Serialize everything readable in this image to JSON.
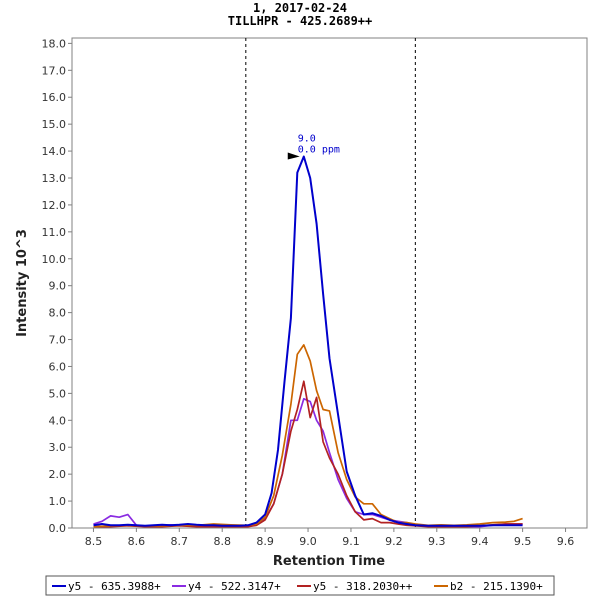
{
  "chart_data": {
    "type": "line",
    "title": "1, 2017-02-24",
    "subtitle": "TILLHPR - 425.2689++",
    "xlabel": "Retention Time",
    "ylabel": "Intensity 10^3",
    "xlim": [
      8.45,
      9.65
    ],
    "ylim": [
      0,
      18.2
    ],
    "x_ticks": [
      "8.5",
      "8.6",
      "8.7",
      "8.8",
      "8.9",
      "9.0",
      "9.1",
      "9.2",
      "9.3",
      "9.4",
      "9.5",
      "9.6"
    ],
    "y_ticks": [
      "0.0",
      "1.0",
      "2.0",
      "3.0",
      "4.0",
      "5.0",
      "6.0",
      "7.0",
      "8.0",
      "9.0",
      "10.0",
      "11.0",
      "12.0",
      "13.0",
      "14.0",
      "15.0",
      "16.0",
      "17.0",
      "18.0"
    ],
    "x_tick_values": [
      8.5,
      8.6,
      8.7,
      8.8,
      8.9,
      9.0,
      9.1,
      9.2,
      9.3,
      9.4,
      9.5,
      9.6
    ],
    "y_tick_values": [
      0,
      1,
      2,
      3,
      4,
      5,
      6,
      7,
      8,
      9,
      10,
      11,
      12,
      13,
      14,
      15,
      16,
      17,
      18
    ],
    "integration_bounds": [
      8.855,
      9.25
    ],
    "annotation": {
      "x": 8.99,
      "y": 13.8,
      "lines": [
        "9.0",
        "0.0 ppm"
      ]
    },
    "grid": false,
    "legend_position": "bottom",
    "series": [
      {
        "name": "y5 - 635.3988+",
        "color": "#0000cc",
        "x": [
          8.5,
          8.52,
          8.54,
          8.56,
          8.58,
          8.6,
          8.62,
          8.64,
          8.66,
          8.68,
          8.7,
          8.72,
          8.74,
          8.76,
          8.78,
          8.8,
          8.82,
          8.84,
          8.86,
          8.88,
          8.9,
          8.915,
          8.93,
          8.945,
          8.96,
          8.975,
          8.99,
          9.005,
          9.02,
          9.035,
          9.05,
          9.07,
          9.09,
          9.11,
          9.13,
          9.15,
          9.17,
          9.19,
          9.21,
          9.23,
          9.25,
          9.28,
          9.31,
          9.34,
          9.37,
          9.4,
          9.43,
          9.46,
          9.5
        ],
        "y": [
          0.1,
          0.15,
          0.1,
          0.1,
          0.12,
          0.1,
          0.08,
          0.1,
          0.12,
          0.1,
          0.12,
          0.15,
          0.12,
          0.1,
          0.1,
          0.08,
          0.08,
          0.08,
          0.1,
          0.2,
          0.5,
          1.3,
          2.9,
          5.4,
          7.8,
          13.2,
          13.8,
          13.0,
          11.3,
          8.7,
          6.3,
          4.2,
          2.1,
          1.2,
          0.5,
          0.55,
          0.45,
          0.3,
          0.2,
          0.15,
          0.1,
          0.08,
          0.08,
          0.08,
          0.08,
          0.08,
          0.1,
          0.1,
          0.1
        ]
      },
      {
        "name": "y4 - 522.3147+",
        "color": "#8a2be2",
        "x": [
          8.5,
          8.52,
          8.54,
          8.56,
          8.58,
          8.6,
          8.62,
          8.64,
          8.66,
          8.68,
          8.7,
          8.72,
          8.74,
          8.76,
          8.78,
          8.8,
          8.82,
          8.84,
          8.86,
          8.88,
          8.9,
          8.92,
          8.94,
          8.96,
          8.975,
          8.99,
          9.005,
          9.02,
          9.035,
          9.05,
          9.07,
          9.09,
          9.11,
          9.13,
          9.15,
          9.17,
          9.19,
          9.21,
          9.23,
          9.25,
          9.28,
          9.31,
          9.34,
          9.37,
          9.4,
          9.43,
          9.46,
          9.5
        ],
        "y": [
          0.15,
          0.25,
          0.45,
          0.4,
          0.5,
          0.1,
          0.05,
          0.08,
          0.1,
          0.12,
          0.1,
          0.1,
          0.1,
          0.08,
          0.08,
          0.05,
          0.05,
          0.05,
          0.08,
          0.15,
          0.35,
          0.9,
          2.0,
          4.0,
          4.0,
          4.8,
          4.7,
          4.0,
          3.6,
          2.8,
          1.8,
          1.1,
          0.6,
          0.5,
          0.5,
          0.4,
          0.3,
          0.25,
          0.2,
          0.1,
          0.08,
          0.05,
          0.05,
          0.05,
          0.05,
          0.1,
          0.15,
          0.15
        ]
      },
      {
        "name": "y5 - 318.2030++",
        "color": "#b22222",
        "x": [
          8.5,
          8.54,
          8.58,
          8.62,
          8.66,
          8.7,
          8.74,
          8.78,
          8.82,
          8.86,
          8.88,
          8.9,
          8.92,
          8.94,
          8.96,
          8.975,
          8.99,
          9.005,
          9.02,
          9.035,
          9.05,
          9.07,
          9.09,
          9.11,
          9.13,
          9.15,
          9.17,
          9.19,
          9.21,
          9.23,
          9.25,
          9.28,
          9.31,
          9.34,
          9.37,
          9.4,
          9.43,
          9.46,
          9.5
        ],
        "y": [
          0.05,
          0.05,
          0.08,
          0.05,
          0.05,
          0.08,
          0.05,
          0.05,
          0.05,
          0.05,
          0.1,
          0.3,
          0.9,
          2.0,
          3.6,
          4.4,
          5.45,
          4.1,
          4.85,
          3.2,
          2.6,
          2.0,
          1.2,
          0.6,
          0.3,
          0.35,
          0.2,
          0.2,
          0.15,
          0.1,
          0.08,
          0.05,
          0.05,
          0.05,
          0.05,
          0.08,
          0.12,
          0.15,
          0.15
        ]
      },
      {
        "name": "b2 - 215.1390+",
        "color": "#cc6600",
        "x": [
          8.5,
          8.54,
          8.58,
          8.62,
          8.66,
          8.7,
          8.74,
          8.78,
          8.82,
          8.86,
          8.88,
          8.9,
          8.92,
          8.94,
          8.96,
          8.975,
          8.99,
          9.005,
          9.02,
          9.035,
          9.05,
          9.07,
          9.09,
          9.11,
          9.13,
          9.15,
          9.17,
          9.19,
          9.21,
          9.23,
          9.25,
          9.28,
          9.31,
          9.34,
          9.37,
          9.4,
          9.43,
          9.46,
          9.48,
          9.5
        ],
        "y": [
          0.05,
          0.08,
          0.1,
          0.08,
          0.08,
          0.1,
          0.1,
          0.15,
          0.12,
          0.1,
          0.15,
          0.4,
          1.2,
          2.7,
          4.6,
          6.45,
          6.8,
          6.2,
          5.1,
          4.4,
          4.35,
          2.8,
          1.8,
          1.15,
          0.9,
          0.9,
          0.5,
          0.35,
          0.2,
          0.2,
          0.15,
          0.1,
          0.12,
          0.1,
          0.12,
          0.15,
          0.2,
          0.22,
          0.25,
          0.35
        ]
      }
    ]
  }
}
